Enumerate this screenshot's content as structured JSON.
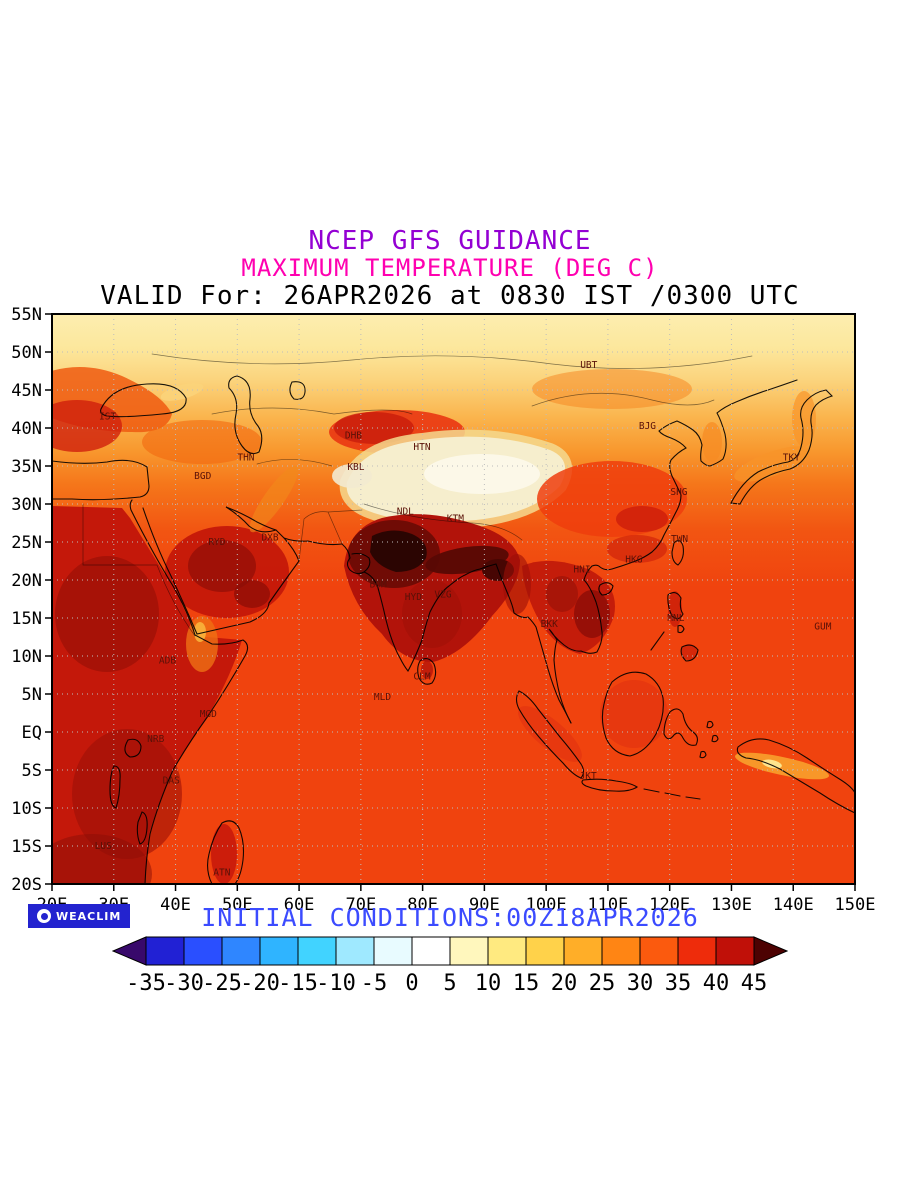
{
  "style": {
    "title1_color": "#9400d3",
    "title2_color": "#ff00b0",
    "initial_color": "#3b4bff",
    "logo_bg": "#2323cf",
    "station_color": "#5a1108",
    "grid_color": "#bdbdbd"
  },
  "header": {
    "title1": "NCEP GFS GUIDANCE",
    "title2": "MAXIMUM TEMPERATURE (DEG C)",
    "title3": "VALID For: 26APR2026 at 0830 IST /0300 UTC"
  },
  "footer": {
    "initial_conditions": "INITIAL CONDITIONS:00Z18APR2026",
    "logo_text": "WEACLIM"
  },
  "map": {
    "lon_range": [
      20,
      150
    ],
    "lat_range": [
      -20,
      55
    ],
    "lat_ticks": [
      {
        "label": "55N",
        "lat": 55
      },
      {
        "label": "50N",
        "lat": 50
      },
      {
        "label": "45N",
        "lat": 45
      },
      {
        "label": "40N",
        "lat": 40
      },
      {
        "label": "35N",
        "lat": 35
      },
      {
        "label": "30N",
        "lat": 30
      },
      {
        "label": "25N",
        "lat": 25
      },
      {
        "label": "20N",
        "lat": 20
      },
      {
        "label": "15N",
        "lat": 15
      },
      {
        "label": "10N",
        "lat": 10
      },
      {
        "label": "5N",
        "lat": 5
      },
      {
        "label": "EQ",
        "lat": 0
      },
      {
        "label": "5S",
        "lat": -5
      },
      {
        "label": "10S",
        "lat": -10
      },
      {
        "label": "15S",
        "lat": -15
      },
      {
        "label": "20S",
        "lat": -20
      }
    ],
    "lon_ticks": [
      {
        "label": "20E",
        "lon": 20
      },
      {
        "label": "30E",
        "lon": 30
      },
      {
        "label": "40E",
        "lon": 40
      },
      {
        "label": "50E",
        "lon": 50
      },
      {
        "label": "60E",
        "lon": 60
      },
      {
        "label": "70E",
        "lon": 70
      },
      {
        "label": "80E",
        "lon": 80
      },
      {
        "label": "90E",
        "lon": 90
      },
      {
        "label": "100E",
        "lon": 100
      },
      {
        "label": "110E",
        "lon": 110
      },
      {
        "label": "120E",
        "lon": 120
      },
      {
        "label": "130E",
        "lon": 130
      },
      {
        "label": "140E",
        "lon": 140
      },
      {
        "label": "150E",
        "lon": 150
      }
    ],
    "stations": [
      {
        "id": "UBT",
        "lon": 106.9,
        "lat": 47.9
      },
      {
        "id": "IST",
        "lon": 29.0,
        "lat": 41.1
      },
      {
        "id": "BJG",
        "lon": 116.4,
        "lat": 39.9
      },
      {
        "id": "TKY",
        "lon": 139.7,
        "lat": 35.7
      },
      {
        "id": "DHB",
        "lon": 68.8,
        "lat": 38.6
      },
      {
        "id": "HTN",
        "lon": 79.9,
        "lat": 37.1
      },
      {
        "id": "THN",
        "lon": 51.4,
        "lat": 35.7
      },
      {
        "id": "KBL",
        "lon": 69.2,
        "lat": 34.5
      },
      {
        "id": "BGD",
        "lon": 44.4,
        "lat": 33.3
      },
      {
        "id": "SHG",
        "lon": 121.5,
        "lat": 31.2
      },
      {
        "id": "TWN",
        "lon": 121.6,
        "lat": 25.0
      },
      {
        "id": "KTM",
        "lon": 85.3,
        "lat": 27.7
      },
      {
        "id": "RYD",
        "lon": 46.7,
        "lat": 24.6
      },
      {
        "id": "DXB",
        "lon": 55.3,
        "lat": 25.2
      },
      {
        "id": "NDL",
        "lon": 77.2,
        "lat": 28.6
      },
      {
        "id": "HKG",
        "lon": 114.2,
        "lat": 22.3
      },
      {
        "id": "HNI",
        "lon": 105.8,
        "lat": 21.0
      },
      {
        "id": "BOM",
        "lon": 72.8,
        "lat": 19.0
      },
      {
        "id": "HYD",
        "lon": 78.5,
        "lat": 17.4
      },
      {
        "id": "VZG",
        "lon": 83.3,
        "lat": 17.7
      },
      {
        "id": "BKK",
        "lon": 100.5,
        "lat": 13.8
      },
      {
        "id": "MNL",
        "lon": 121.0,
        "lat": 14.6
      },
      {
        "id": "GUM",
        "lon": 144.8,
        "lat": 13.5
      },
      {
        "id": "ADB",
        "lon": 38.7,
        "lat": 9.0
      },
      {
        "id": "CLM",
        "lon": 79.9,
        "lat": 6.9
      },
      {
        "id": "MLD",
        "lon": 73.5,
        "lat": 4.2
      },
      {
        "id": "MGD",
        "lon": 45.3,
        "lat": 2.0
      },
      {
        "id": "NRB",
        "lon": 36.8,
        "lat": -1.3
      },
      {
        "id": "DAS",
        "lon": 39.3,
        "lat": -6.8
      },
      {
        "id": "JKT",
        "lon": 106.8,
        "lat": -6.2
      },
      {
        "id": "LUS",
        "lon": 28.3,
        "lat": -15.4
      },
      {
        "id": "ATN",
        "lon": 47.5,
        "lat": -18.9
      }
    ]
  },
  "colorbar": {
    "unit": "DEG C",
    "tick_labels": [
      "-35",
      "-30",
      "-25",
      "-20",
      "-15",
      "-10",
      "-5",
      "0",
      "5",
      "10",
      "15",
      "20",
      "25",
      "30",
      "35",
      "40",
      "45"
    ],
    "arrow_left_color": "#38096b",
    "arrow_right_color": "#4d0202",
    "segment_colors": [
      "#2121d4",
      "#2a4fff",
      "#2f86ff",
      "#2fb4ff",
      "#41d3ff",
      "#9fe9ff",
      "#e8fbff",
      "#ffffff",
      "#fff7bd",
      "#ffea80",
      "#ffd24a",
      "#ffae28",
      "#ff8514",
      "#fb5a0e",
      "#ee2c0b",
      "#c01008"
    ]
  }
}
